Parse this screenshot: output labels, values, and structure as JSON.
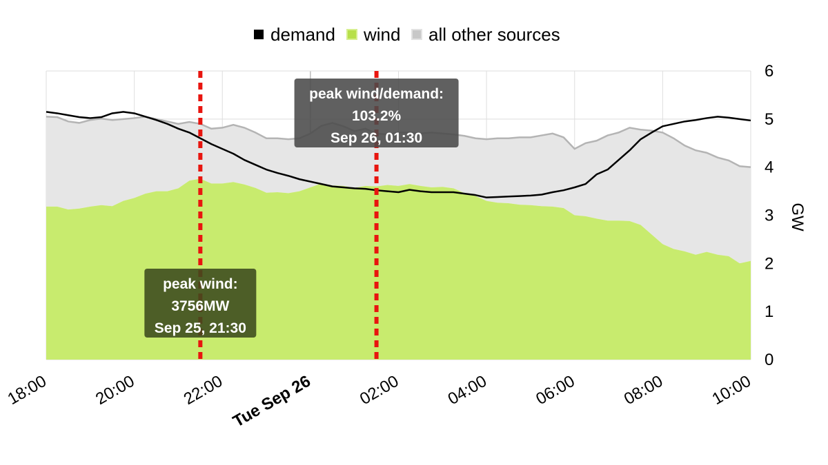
{
  "chart_data": {
    "type": "area",
    "ylabel": "GW",
    "ylim": [
      0,
      6
    ],
    "yticks": [
      0,
      1,
      2,
      3,
      4,
      5,
      6
    ],
    "xlim_hours": [
      18,
      34
    ],
    "xticks": [
      {
        "h": 18,
        "label": "18:00",
        "bold": false
      },
      {
        "h": 20,
        "label": "20:00",
        "bold": false
      },
      {
        "h": 22,
        "label": "22:00",
        "bold": false
      },
      {
        "h": 24,
        "label": "Tue Sep 26",
        "bold": true
      },
      {
        "h": 26,
        "label": "02:00",
        "bold": false
      },
      {
        "h": 28,
        "label": "04:00",
        "bold": false
      },
      {
        "h": 30,
        "label": "06:00",
        "bold": false
      },
      {
        "h": 32,
        "label": "08:00",
        "bold": false
      },
      {
        "h": 34,
        "label": "10:00",
        "bold": false
      }
    ],
    "legend": [
      {
        "name": "demand",
        "color": "#000000"
      },
      {
        "name": "wind",
        "color": "#b7e04a"
      },
      {
        "name": "all other sources",
        "color": "#c8c8c8"
      }
    ],
    "colors": {
      "wind_fill": "#c8eb6e",
      "other_fill": "#e6e6e6",
      "other_line": "#b4b4b4",
      "demand_line": "#000000",
      "marker": "#e8150f",
      "annotation_bg": "#4a4a4a",
      "annotation_wind_bg": "#3b4a1e"
    },
    "series": [
      {
        "name": "wind",
        "x": [
          18,
          18.25,
          18.5,
          18.75,
          19,
          19.25,
          19.5,
          19.75,
          20,
          20.25,
          20.5,
          20.75,
          21,
          21.25,
          21.5,
          21.75,
          22,
          22.25,
          22.5,
          22.75,
          23,
          23.25,
          23.5,
          23.75,
          24,
          24.25,
          24.5,
          24.75,
          25,
          25.25,
          25.5,
          25.75,
          26,
          26.25,
          26.5,
          26.75,
          27,
          27.25,
          27.5,
          27.75,
          28,
          28.25,
          28.5,
          28.75,
          29,
          29.25,
          29.5,
          29.75,
          30,
          30.25,
          30.5,
          30.75,
          31,
          31.25,
          31.5,
          31.75,
          32,
          32.25,
          32.5,
          32.75,
          33,
          33.25,
          33.5,
          33.75,
          34
        ],
        "values": [
          3.18,
          3.18,
          3.12,
          3.14,
          3.18,
          3.21,
          3.19,
          3.3,
          3.36,
          3.45,
          3.5,
          3.5,
          3.56,
          3.72,
          3.76,
          3.66,
          3.66,
          3.69,
          3.64,
          3.57,
          3.47,
          3.48,
          3.46,
          3.5,
          3.58,
          3.66,
          3.62,
          3.61,
          3.57,
          3.61,
          3.6,
          3.63,
          3.61,
          3.65,
          3.61,
          3.58,
          3.59,
          3.56,
          3.46,
          3.4,
          3.3,
          3.26,
          3.25,
          3.22,
          3.21,
          3.19,
          3.18,
          3.15,
          3.0,
          2.98,
          2.93,
          2.89,
          2.89,
          2.88,
          2.8,
          2.6,
          2.4,
          2.3,
          2.25,
          2.18,
          2.24,
          2.18,
          2.15,
          2.0,
          2.05
        ]
      },
      {
        "name": "all other sources",
        "x": [
          18,
          18.25,
          18.5,
          18.75,
          19,
          19.25,
          19.5,
          19.75,
          20,
          20.25,
          20.5,
          20.75,
          21,
          21.25,
          21.5,
          21.75,
          22,
          22.25,
          22.5,
          22.75,
          23,
          23.25,
          23.5,
          23.75,
          24,
          24.25,
          24.5,
          24.75,
          25,
          25.25,
          25.5,
          25.75,
          26,
          26.25,
          26.5,
          26.75,
          27,
          27.25,
          27.5,
          27.75,
          28,
          28.25,
          28.5,
          28.75,
          29,
          29.25,
          29.5,
          29.75,
          30,
          30.25,
          30.5,
          30.75,
          31,
          31.25,
          31.5,
          31.75,
          32,
          32.25,
          32.5,
          32.75,
          33,
          33.25,
          33.5,
          33.75,
          34
        ],
        "values": [
          5.05,
          5.04,
          4.95,
          4.92,
          4.98,
          5.01,
          4.98,
          5.0,
          5.02,
          5.05,
          5.0,
          4.95,
          4.9,
          4.94,
          4.9,
          4.8,
          4.82,
          4.88,
          4.82,
          4.72,
          4.6,
          4.6,
          4.58,
          4.6,
          4.7,
          4.86,
          4.92,
          4.85,
          4.75,
          4.8,
          4.7,
          4.68,
          4.72,
          4.72,
          4.7,
          4.72,
          4.7,
          4.68,
          4.65,
          4.6,
          4.58,
          4.6,
          4.6,
          4.62,
          4.62,
          4.66,
          4.7,
          4.62,
          4.38,
          4.5,
          4.55,
          4.66,
          4.72,
          4.82,
          4.78,
          4.76,
          4.72,
          4.6,
          4.45,
          4.35,
          4.3,
          4.2,
          4.14,
          4.02,
          4.0
        ]
      },
      {
        "name": "demand",
        "x": [
          18,
          18.25,
          18.5,
          18.75,
          19,
          19.25,
          19.5,
          19.75,
          20,
          20.25,
          20.5,
          20.75,
          21,
          21.25,
          21.5,
          21.75,
          22,
          22.25,
          22.5,
          22.75,
          23,
          23.25,
          23.5,
          23.75,
          24,
          24.25,
          24.5,
          24.75,
          25,
          25.25,
          25.5,
          25.75,
          26,
          26.25,
          26.5,
          26.75,
          27,
          27.25,
          27.5,
          27.75,
          28,
          28.25,
          28.5,
          28.75,
          29,
          29.25,
          29.5,
          29.75,
          30,
          30.25,
          30.5,
          30.75,
          31,
          31.25,
          31.5,
          31.75,
          32,
          32.25,
          32.5,
          32.75,
          33,
          33.25,
          33.5,
          33.75,
          34
        ],
        "values": [
          5.15,
          5.12,
          5.08,
          5.04,
          5.02,
          5.04,
          5.12,
          5.15,
          5.12,
          5.05,
          4.98,
          4.9,
          4.8,
          4.72,
          4.6,
          4.48,
          4.38,
          4.28,
          4.15,
          4.05,
          3.95,
          3.88,
          3.82,
          3.75,
          3.7,
          3.65,
          3.6,
          3.58,
          3.56,
          3.55,
          3.52,
          3.5,
          3.48,
          3.53,
          3.5,
          3.48,
          3.48,
          3.48,
          3.45,
          3.42,
          3.37,
          3.38,
          3.39,
          3.4,
          3.41,
          3.43,
          3.48,
          3.52,
          3.58,
          3.65,
          3.85,
          3.95,
          4.15,
          4.35,
          4.58,
          4.72,
          4.85,
          4.9,
          4.95,
          4.98,
          5.02,
          5.05,
          5.03,
          5.0,
          4.97
        ]
      }
    ],
    "markers": [
      {
        "h": 21.5,
        "label": "peak wind"
      },
      {
        "h": 25.5,
        "label": "peak wind/demand"
      }
    ],
    "annotations": [
      {
        "id": "peak-wind",
        "lines": [
          "peak wind:",
          "3756MW",
          "Sep 25, 21:30"
        ],
        "anchor_h": 21.5
      },
      {
        "id": "peak-ratio",
        "lines": [
          "peak wind/demand:",
          "103.2%",
          "Sep 26, 01:30"
        ],
        "anchor_h": 25.5
      }
    ]
  }
}
